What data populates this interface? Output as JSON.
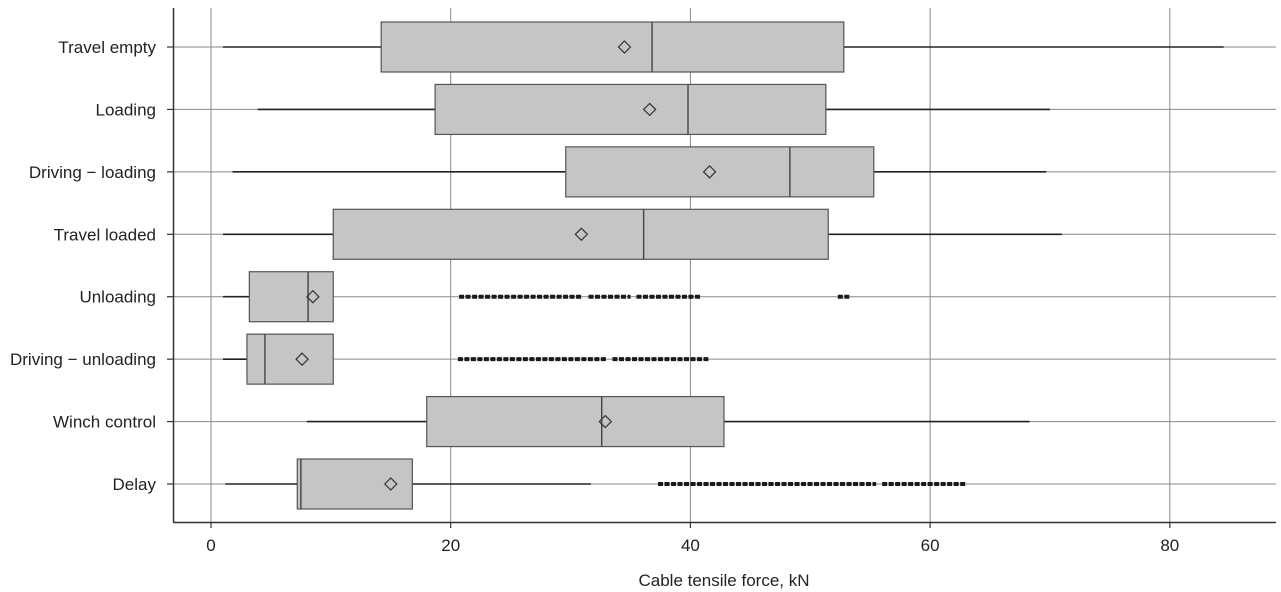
{
  "chart_data": {
    "type": "boxplot",
    "orientation": "horizontal",
    "xlabel": "Cable tensile force, kN",
    "ylabel": "",
    "title": "",
    "xlim": [
      -3,
      88
    ],
    "xticks": [
      0,
      20,
      40,
      60,
      80
    ],
    "grid": true,
    "colors": {
      "box_fill": "#c4c5c7",
      "box_stroke": "#555555",
      "whisker": "#222222",
      "grid": "#888888"
    },
    "categories": [
      "Travel empty",
      "Loading",
      "Driving − loading",
      "Travel loaded",
      "Unloading",
      "Driving − unloading",
      "Winch control",
      "Delay"
    ],
    "series": [
      {
        "label": "Travel empty",
        "whisker_low": 1.0,
        "q1": 14.2,
        "median": 36.8,
        "q3": 52.8,
        "whisker_high": 84.5,
        "mean": 34.5,
        "outliers": []
      },
      {
        "label": "Loading",
        "whisker_low": 3.9,
        "q1": 18.7,
        "median": 39.8,
        "q3": 51.3,
        "whisker_high": 70.0,
        "mean": 36.6,
        "outliers": []
      },
      {
        "label": "Driving − loading",
        "whisker_low": 1.8,
        "q1": 29.6,
        "median": 48.3,
        "q3": 55.3,
        "whisker_high": 69.7,
        "mean": 41.6,
        "outliers": []
      },
      {
        "label": "Travel loaded",
        "whisker_low": 1.0,
        "q1": 10.2,
        "median": 36.1,
        "q3": 51.5,
        "whisker_high": 71.0,
        "mean": 30.9,
        "outliers": []
      },
      {
        "label": "Unloading",
        "whisker_low": 1.0,
        "q1": 3.2,
        "median": 8.1,
        "q3": 10.2,
        "whisker_high": 10.2,
        "mean": 8.5,
        "outliers": [
          [
            20.7,
            31.0
          ],
          [
            31.5,
            35.0
          ],
          [
            35.5,
            40.8
          ],
          [
            52.3,
            53.3
          ]
        ]
      },
      {
        "label": "Driving − unloading",
        "whisker_low": 1.0,
        "q1": 3.0,
        "median": 4.5,
        "q3": 10.2,
        "whisker_high": 10.2,
        "mean": 7.6,
        "outliers": [
          [
            20.6,
            33.0
          ],
          [
            33.5,
            41.5
          ]
        ]
      },
      {
        "label": "Winch control",
        "whisker_low": 8.0,
        "q1": 18.0,
        "median": 32.6,
        "q3": 42.8,
        "whisker_high": 68.3,
        "mean": 32.9,
        "outliers": []
      },
      {
        "label": "Delay",
        "whisker_low": 1.2,
        "q1": 7.2,
        "median": 7.5,
        "q3": 16.8,
        "whisker_high": 31.7,
        "mean": 15.0,
        "outliers": [
          [
            37.3,
            55.5
          ],
          [
            56.0,
            63.0
          ]
        ]
      }
    ]
  }
}
